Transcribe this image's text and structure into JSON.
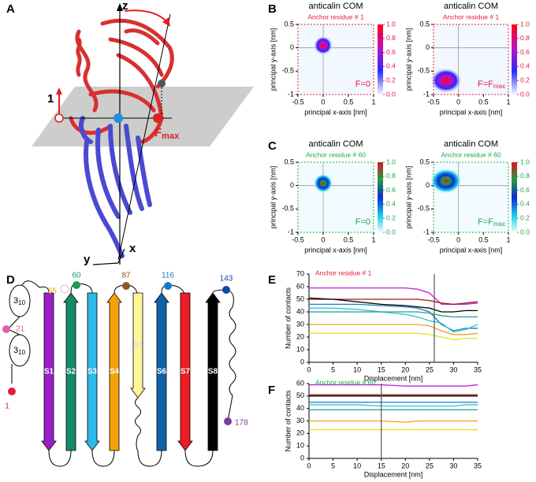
{
  "panel_labels": [
    "A",
    "B",
    "C",
    "D",
    "E",
    "F"
  ],
  "panel_a": {
    "axis_z": "z",
    "axis_x": "x",
    "axis_y": "y",
    "residue": "1",
    "force": "F",
    "force_sub": "max"
  },
  "panel_d": {
    "strands": [
      "S1",
      "S2",
      "S3",
      "S4",
      "S5",
      "S6",
      "S7",
      "S8"
    ],
    "helix": "3",
    "helix_sub": "10",
    "residues": [
      "1",
      "21",
      "55",
      "60",
      "87",
      "116",
      "143",
      "178"
    ]
  },
  "chart_data": [
    {
      "type": "heatmap",
      "title": "anticalin COM",
      "subtitle": "Anchor residue # 1",
      "xlabel": "principal x-axis [nm]",
      "ylabel": "principal y-axis [nm]",
      "xlim": [
        -0.5,
        1
      ],
      "ylim": [
        -1,
        0.5
      ],
      "xticks": [
        -0.5,
        0,
        0.5,
        1
      ],
      "yticks": [
        -1,
        -0.5,
        0,
        0.5
      ],
      "clim": [
        0,
        1
      ],
      "cticks": [
        {
          "value": 0,
          "label": "0.0"
        },
        0.2,
        0.4,
        0.6,
        0.8,
        {
          "value": 1,
          "label": "1.0"
        }
      ],
      "colormap": [
        "#f2f8ff",
        "#2a2aff",
        "#c010c0",
        "#ff0010"
      ],
      "accent": "#e8193c",
      "annotation": "F=0",
      "x": [
        0
      ],
      "values": [
        0.05
      ]
    },
    {
      "type": "heatmap",
      "title": "anticalin COM",
      "subtitle": "Anchor residue # 1",
      "xlabel": "principal x-axis [nm]",
      "ylabel": "principal y-axis [nm]",
      "xlim": [
        -0.5,
        1
      ],
      "ylim": [
        -1,
        0.5
      ],
      "xticks": [
        -0.5,
        0,
        0.5,
        1
      ],
      "yticks": [
        -1,
        -0.5,
        0,
        0.5
      ],
      "clim": [
        0,
        1
      ],
      "cticks": [
        {
          "value": 0,
          "label": "0.0"
        },
        0.2,
        0.4,
        0.6,
        0.8,
        {
          "value": 1,
          "label": "1.0"
        }
      ],
      "colormap": [
        "#f2f8ff",
        "#2a2aff",
        "#c010c0",
        "#ff0010"
      ],
      "accent": "#e8193c",
      "annotation": "F=F",
      "annotation_sub": "max",
      "x": [
        -0.25
      ],
      "values": [
        -0.7
      ]
    },
    {
      "type": "heatmap",
      "title": "anticalin COM",
      "subtitle": "Anchor residue # 60",
      "xlabel": "principal x-axis [nm]",
      "ylabel": "principal y-axis [nm]",
      "xlim": [
        -0.5,
        1
      ],
      "ylim": [
        -1,
        0.5
      ],
      "xticks": [
        -0.5,
        0,
        0.5,
        1
      ],
      "yticks": [
        -1,
        -0.5,
        0,
        0.5
      ],
      "clim": [
        0,
        1
      ],
      "cticks": [
        {
          "value": 0,
          "label": "0.0"
        },
        0.2,
        0.4,
        0.6,
        0.8,
        {
          "value": 1,
          "label": "1.0"
        }
      ],
      "colormap": [
        "#f2fbff",
        "#10c8e8",
        "#1028d8",
        "#20a040",
        "#e01020"
      ],
      "accent": "#21a84a",
      "annotation": "F=0",
      "x": [
        0
      ],
      "values": [
        0.05
      ]
    },
    {
      "type": "heatmap",
      "title": "anticalin COM",
      "subtitle": "Anchor residue # 60",
      "xlabel": "principal x-axis [nm]",
      "ylabel": "principal y-axis [nm]",
      "xlim": [
        -0.5,
        1
      ],
      "ylim": [
        -1,
        0.5
      ],
      "xticks": [
        -0.5,
        0,
        0.5,
        1
      ],
      "yticks": [
        -1,
        -0.5,
        0,
        0.5
      ],
      "clim": [
        0,
        1
      ],
      "cticks": [
        {
          "value": 0,
          "label": "0.0"
        },
        0.2,
        0.4,
        0.6,
        0.8,
        {
          "value": 1,
          "label": "1.0"
        }
      ],
      "colormap": [
        "#f2fbff",
        "#10c8e8",
        "#1028d8",
        "#20a040",
        "#e01020"
      ],
      "accent": "#21a84a",
      "annotation": "F=F",
      "annotation_sub": "max",
      "x": [
        -0.25
      ],
      "values": [
        0.1
      ]
    },
    {
      "type": "line",
      "subtitle": "Anchor residue # 1",
      "xlabel": "Displacement [nm]",
      "ylabel": "Number of contacts",
      "accent": "#e8193c",
      "x": [
        0,
        5,
        10,
        15,
        20,
        22.5,
        25,
        27.5,
        30,
        32.5,
        35
      ],
      "xlim": [
        0,
        35
      ],
      "xticks": [
        0,
        5,
        10,
        15,
        20,
        25,
        30,
        35
      ],
      "ylim": [
        0,
        70
      ],
      "yticks": [
        0,
        10,
        20,
        30,
        40,
        50,
        60,
        70
      ],
      "marker_x": 26,
      "series": [
        {
          "color": "#c020e0",
          "values": [
            59,
            59,
            59,
            59,
            59,
            58,
            55,
            46,
            46,
            46,
            47
          ]
        },
        {
          "color": "#a01818",
          "values": [
            50,
            50,
            50,
            50,
            50,
            50,
            49,
            47,
            46,
            47,
            48
          ]
        },
        {
          "color": "#000000",
          "values": [
            51,
            50,
            48,
            46,
            45,
            44,
            43,
            40,
            40,
            41,
            41
          ]
        },
        {
          "color": "#1a7ac0",
          "values": [
            46,
            46,
            46,
            45,
            44,
            43,
            40,
            30,
            25,
            27,
            27
          ]
        },
        {
          "color": "#30c0e0",
          "values": [
            43,
            43,
            42,
            40,
            38,
            36,
            33,
            31,
            24,
            26,
            30
          ]
        },
        {
          "color": "#20a090",
          "values": [
            40,
            40,
            40,
            40,
            40,
            40,
            39,
            37,
            36,
            36,
            36
          ]
        },
        {
          "color": "#f0a020",
          "values": [
            30,
            30,
            30,
            30,
            30,
            30,
            29,
            25,
            22,
            22,
            23
          ]
        },
        {
          "color": "#e8e020",
          "values": [
            23,
            23,
            23,
            23,
            23,
            23,
            22,
            20,
            18,
            19,
            19
          ]
        }
      ]
    },
    {
      "type": "line",
      "subtitle": "Anchor residue # 60",
      "xlabel": "Displacement [nm]",
      "ylabel": "Number of contacts",
      "accent": "#21a84a",
      "x": [
        0,
        5,
        10,
        15,
        20,
        22.5,
        25,
        27.5,
        30,
        32.5,
        35
      ],
      "xlim": [
        0,
        35
      ],
      "xticks": [
        0,
        5,
        10,
        15,
        20,
        25,
        30,
        35
      ],
      "ylim": [
        0,
        60
      ],
      "yticks": [
        0,
        10,
        20,
        30,
        40,
        50,
        60
      ],
      "marker_x": 15,
      "series": [
        {
          "color": "#c020e0",
          "values": [
            59,
            59,
            59,
            59,
            58,
            58,
            58,
            58,
            58,
            58,
            59
          ]
        },
        {
          "color": "#a01818",
          "values": [
            51,
            51,
            51,
            51,
            51,
            51,
            51,
            51,
            51,
            51,
            51
          ]
        },
        {
          "color": "#000000",
          "values": [
            50,
            50,
            50,
            50,
            50,
            50,
            50,
            50,
            50,
            50,
            50
          ]
        },
        {
          "color": "#1a7ac0",
          "values": [
            45,
            45,
            45,
            45,
            45,
            45,
            45,
            45,
            45,
            45,
            45
          ]
        },
        {
          "color": "#30c0e0",
          "values": [
            43,
            43,
            43,
            42,
            42,
            42,
            42,
            42,
            42,
            43,
            43
          ]
        },
        {
          "color": "#20a090",
          "values": [
            39,
            39,
            39,
            39,
            39,
            39,
            39,
            39,
            39,
            39,
            39
          ]
        },
        {
          "color": "#f0a020",
          "values": [
            30,
            30,
            30,
            30,
            29,
            30,
            30,
            30,
            30,
            30,
            30
          ]
        },
        {
          "color": "#e8e020",
          "values": [
            23,
            23,
            23,
            23,
            23,
            23,
            23,
            23,
            23,
            23,
            23
          ]
        }
      ]
    }
  ]
}
